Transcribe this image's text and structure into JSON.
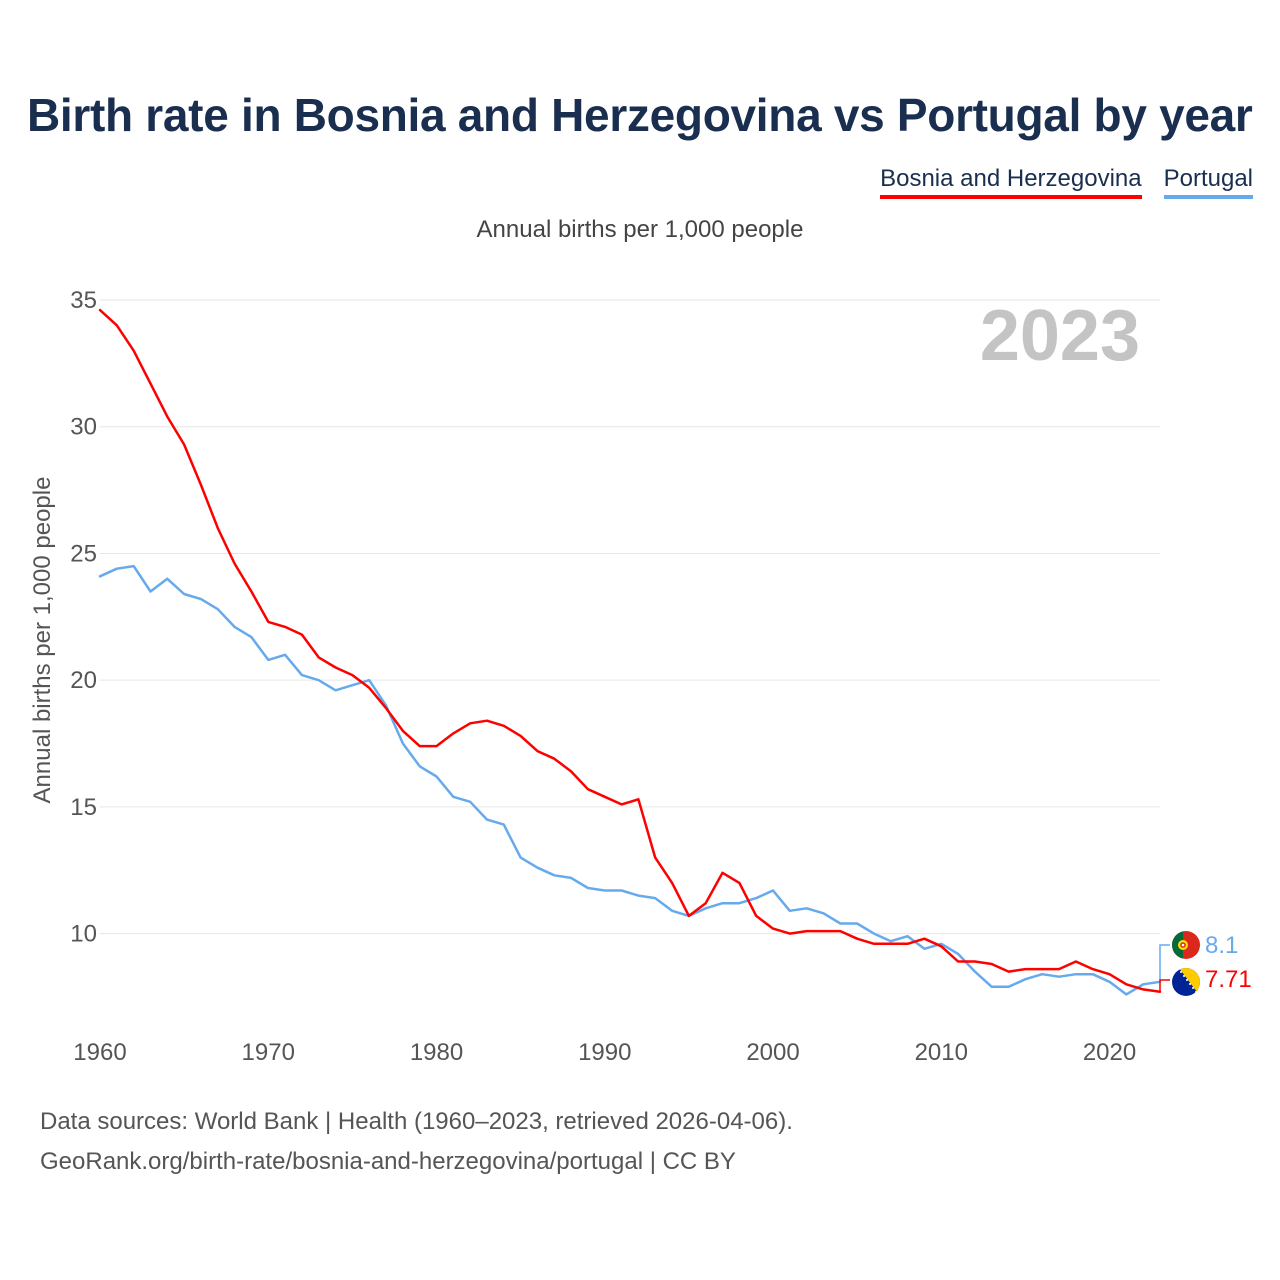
{
  "title": "Birth rate in Bosnia and Herzegovina vs Portugal by year",
  "legend": {
    "items": [
      {
        "name": "Bosnia and Herzegovina",
        "color": "#ff0000"
      },
      {
        "name": "Portugal",
        "color": "#66aaee"
      }
    ]
  },
  "subtitle": "Annual births per 1,000 people",
  "year_watermark": "2023",
  "end_labels": {
    "portugal": "8.1",
    "bosnia": "7.71"
  },
  "flags": {
    "portugal": "portugal-flag-icon",
    "bosnia": "bosnia-flag-icon"
  },
  "sources": {
    "line1": "Data sources: World Bank | Health (1960–2023, retrieved 2026-04-06).",
    "line2": "GeoRank.org/birth-rate/bosnia-and-herzegovina/portugal | CC BY"
  },
  "chart_data": {
    "type": "line",
    "title": "Birth rate in Bosnia and Herzegovina vs Portugal by year",
    "subtitle": "Annual births per 1,000 people",
    "xlabel": "",
    "ylabel": "Annual births per 1,000 people",
    "xlim": [
      1960,
      2023
    ],
    "ylim": [
      6,
      35
    ],
    "xticks": [
      1960,
      1970,
      1980,
      1990,
      2000,
      2010,
      2020
    ],
    "yticks": [
      10,
      15,
      20,
      25,
      30,
      35
    ],
    "grid": true,
    "legend_position": "top-right",
    "x": [
      1960,
      1961,
      1962,
      1963,
      1964,
      1965,
      1966,
      1967,
      1968,
      1969,
      1970,
      1971,
      1972,
      1973,
      1974,
      1975,
      1976,
      1977,
      1978,
      1979,
      1980,
      1981,
      1982,
      1983,
      1984,
      1985,
      1986,
      1987,
      1988,
      1989,
      1990,
      1991,
      1992,
      1993,
      1994,
      1995,
      1996,
      1997,
      1998,
      1999,
      2000,
      2001,
      2002,
      2003,
      2004,
      2005,
      2006,
      2007,
      2008,
      2009,
      2010,
      2011,
      2012,
      2013,
      2014,
      2015,
      2016,
      2017,
      2018,
      2019,
      2020,
      2021,
      2022,
      2023
    ],
    "series": [
      {
        "name": "Bosnia and Herzegovina",
        "color": "#ff0000",
        "values": [
          34.6,
          34.0,
          33.0,
          31.7,
          30.4,
          29.3,
          27.7,
          26.0,
          24.6,
          23.5,
          22.3,
          22.1,
          21.8,
          20.9,
          20.5,
          20.2,
          19.7,
          18.9,
          18.0,
          17.4,
          17.4,
          17.9,
          18.3,
          18.4,
          18.2,
          17.8,
          17.2,
          16.9,
          16.4,
          15.7,
          15.4,
          15.1,
          15.3,
          13.0,
          12.0,
          10.7,
          11.2,
          12.4,
          12.0,
          10.7,
          10.2,
          10.0,
          10.1,
          10.1,
          10.1,
          9.8,
          9.6,
          9.6,
          9.6,
          9.8,
          9.5,
          8.9,
          8.9,
          8.8,
          8.5,
          8.6,
          8.6,
          8.6,
          8.9,
          8.6,
          8.4,
          8.0,
          7.8,
          7.71
        ]
      },
      {
        "name": "Portugal",
        "color": "#66aaee",
        "values": [
          24.1,
          24.4,
          24.5,
          23.5,
          24.0,
          23.4,
          23.2,
          22.8,
          22.1,
          21.7,
          20.8,
          21.0,
          20.2,
          20.0,
          19.6,
          19.8,
          20.0,
          19.0,
          17.5,
          16.6,
          16.2,
          15.4,
          15.2,
          14.5,
          14.3,
          13.0,
          12.6,
          12.3,
          12.2,
          11.8,
          11.7,
          11.7,
          11.5,
          11.4,
          10.9,
          10.7,
          11.0,
          11.2,
          11.2,
          11.4,
          11.7,
          10.9,
          11.0,
          10.8,
          10.4,
          10.4,
          10.0,
          9.7,
          9.9,
          9.4,
          9.6,
          9.2,
          8.5,
          7.9,
          7.9,
          8.2,
          8.4,
          8.3,
          8.4,
          8.4,
          8.1,
          7.6,
          8.0,
          8.1
        ]
      }
    ]
  }
}
